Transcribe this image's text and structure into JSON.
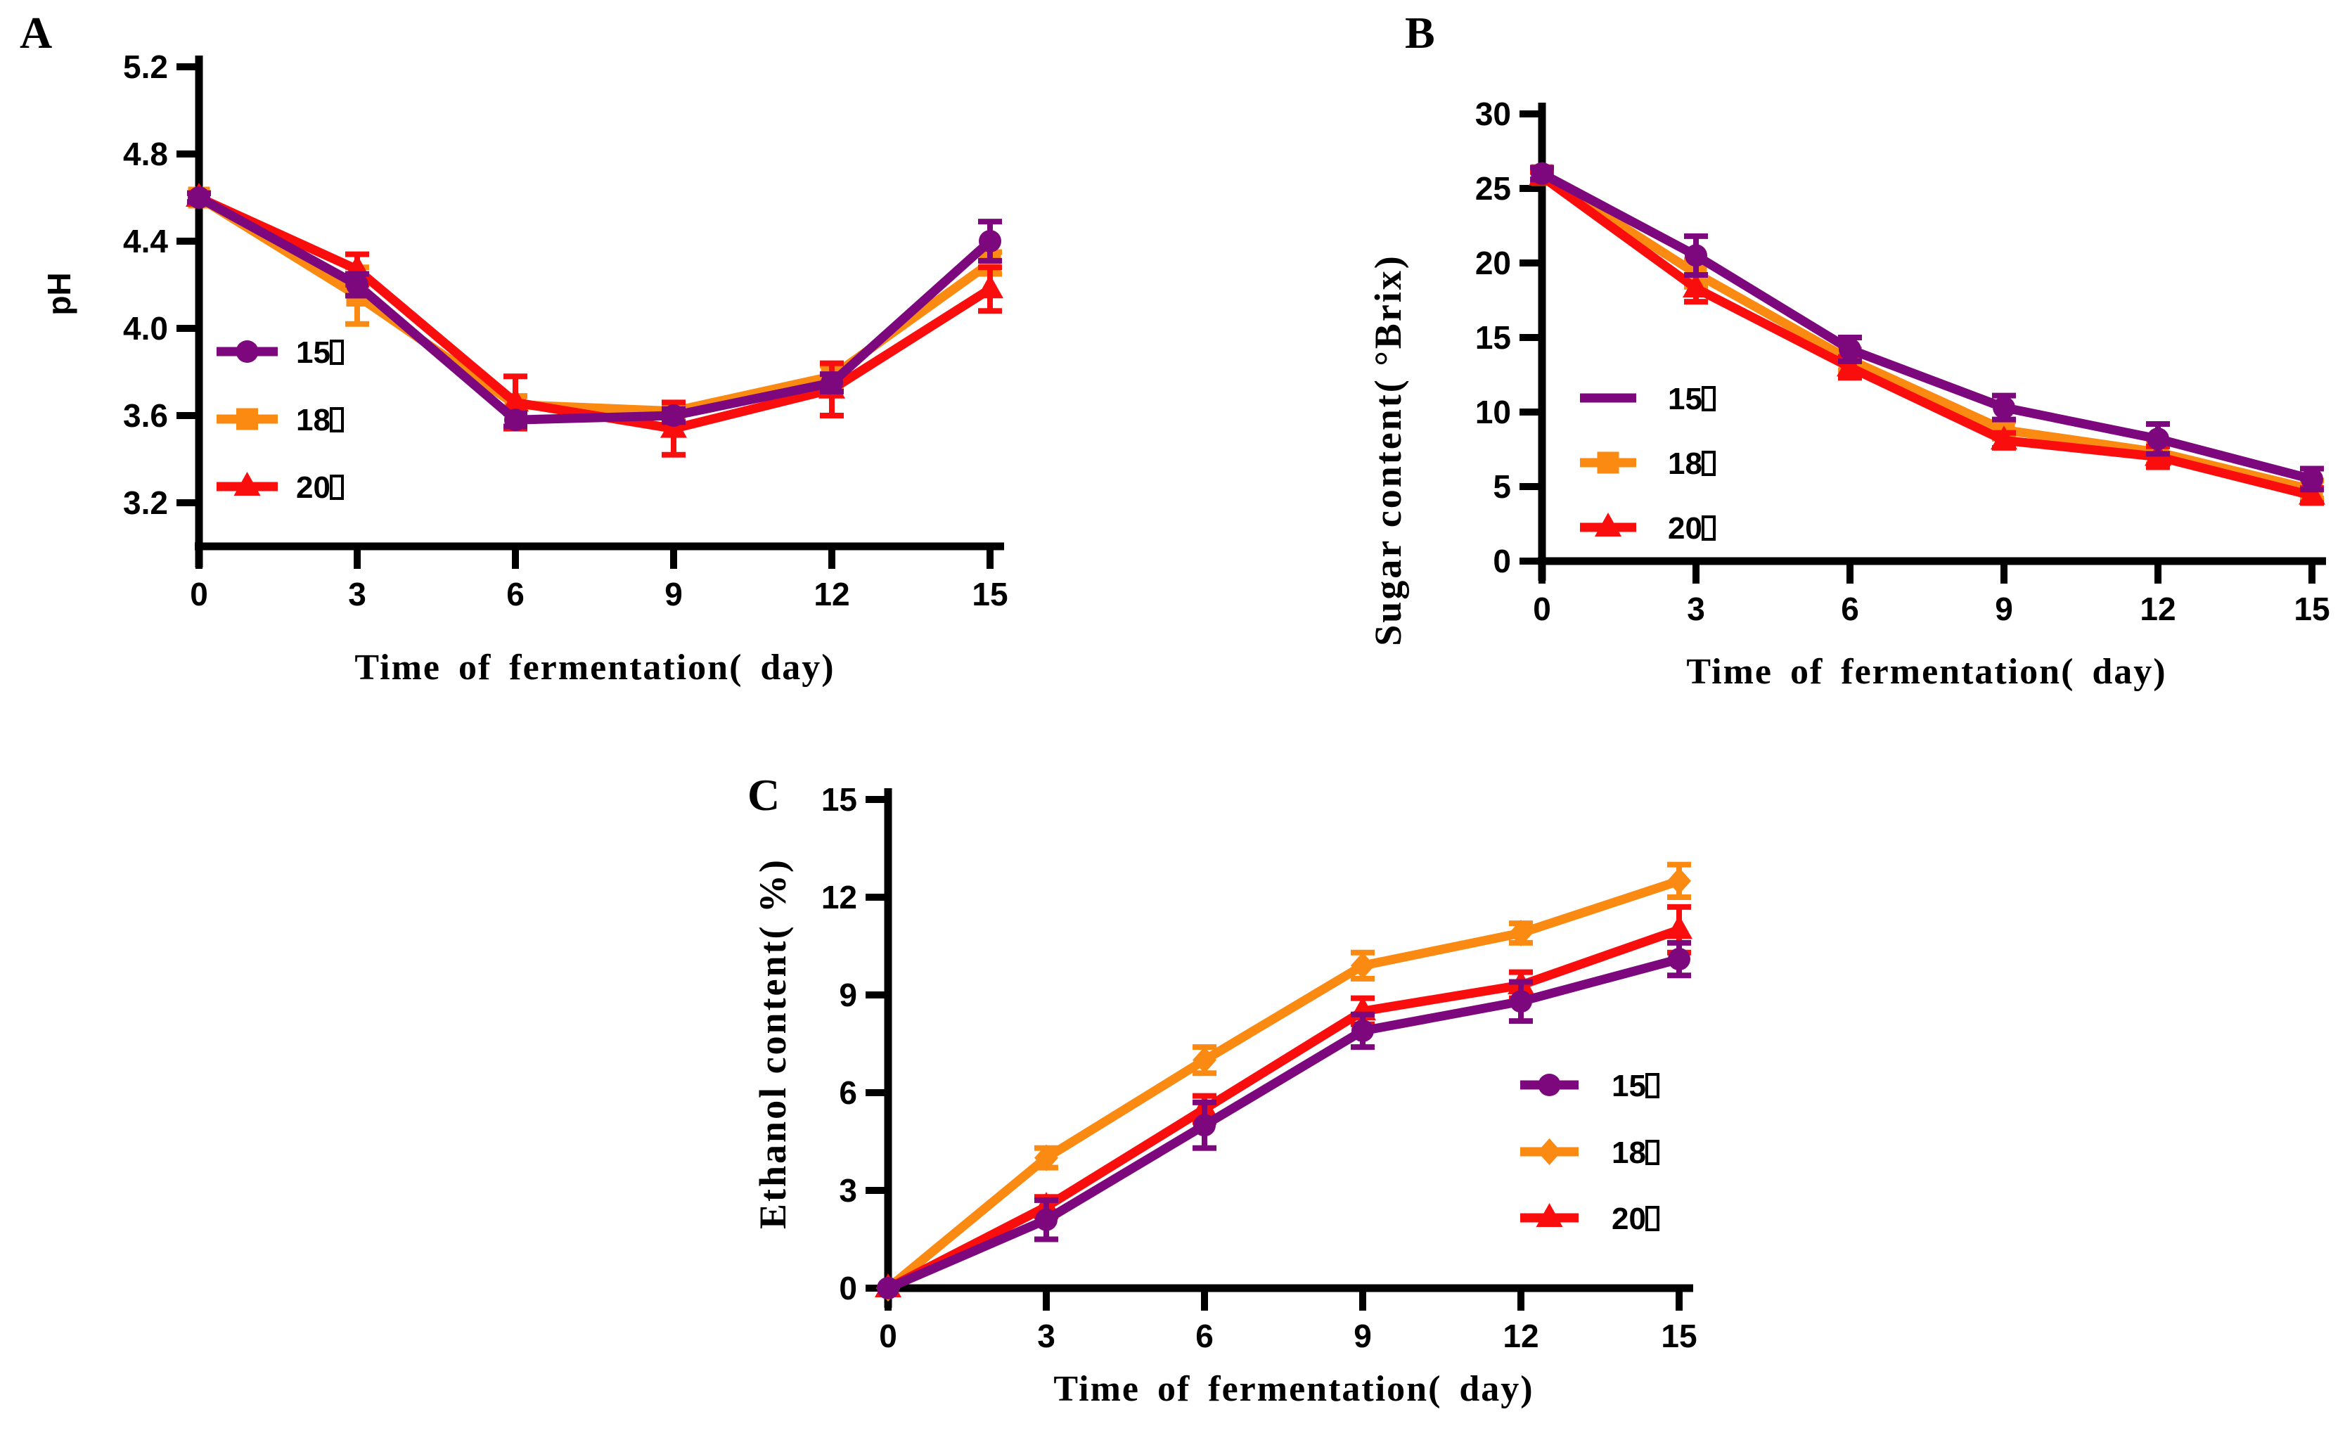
{
  "figure": {
    "background": "#FFFFFF",
    "axis_color": "#000000",
    "legend_unit_glyph": "□",
    "panel_letters": [
      "A",
      "B",
      "C"
    ]
  },
  "colors": {
    "series_15": "#7D087D",
    "series_18": "#FB8A12",
    "series_20": "#F90D0D"
  },
  "chart_data": [
    {
      "type": "line",
      "panel_label": "A",
      "title": "",
      "xlabel": "Time of fermentation( day)",
      "ylabel": "pH",
      "x": [
        0,
        3,
        6,
        9,
        12,
        15
      ],
      "x_tick_labels": [
        "0",
        "3",
        "6",
        "9",
        "12",
        "15"
      ],
      "y_tick_values": [
        3.2,
        3.6,
        4.0,
        4.4,
        4.8,
        5.2
      ],
      "y_tick_labels": [
        "3.2",
        "3.6",
        "4.0",
        "4.4",
        "4.8",
        "5.2"
      ],
      "xlim": [
        0,
        15
      ],
      "ylim": [
        3.0,
        5.2
      ],
      "grid": false,
      "legend_position": "inside-left",
      "series": [
        {
          "name": "15",
          "unit_glyph": "□",
          "color": "#7D087D",
          "marker": "circle",
          "legend_marker": true,
          "values": [
            4.6,
            4.2,
            3.58,
            3.6,
            3.75,
            4.4
          ],
          "errors": [
            0.02,
            0.05,
            0.03,
            0.03,
            0.04,
            0.09
          ]
        },
        {
          "name": "18",
          "unit_glyph": "□",
          "color": "#FB8A12",
          "marker": "square",
          "legend_marker": true,
          "values": [
            4.6,
            4.15,
            3.65,
            3.62,
            3.78,
            4.3
          ],
          "errors": [
            0.02,
            0.13,
            0.04,
            0.03,
            0.05,
            0.05
          ]
        },
        {
          "name": "20",
          "unit_glyph": "□",
          "color": "#F90D0D",
          "marker": "triangle",
          "legend_marker": true,
          "values": [
            4.6,
            4.27,
            3.66,
            3.54,
            3.72,
            4.18
          ],
          "errors": [
            0.02,
            0.07,
            0.12,
            0.12,
            0.12,
            0.1
          ]
        }
      ]
    },
    {
      "type": "line",
      "panel_label": "B",
      "title": "",
      "xlabel": "Time of fermentation( day)",
      "ylabel": "Sugar content( °Brix)",
      "x": [
        0,
        3,
        6,
        9,
        12,
        15
      ],
      "x_tick_labels": [
        "0",
        "3",
        "6",
        "9",
        "12",
        "15"
      ],
      "y_tick_values": [
        0,
        5,
        10,
        15,
        20,
        25,
        30
      ],
      "y_tick_labels": [
        "0",
        "5",
        "10",
        "15",
        "20",
        "25",
        "30"
      ],
      "xlim": [
        0,
        15
      ],
      "ylim": [
        0,
        30
      ],
      "grid": false,
      "legend_position": "inside-left",
      "series": [
        {
          "name": "15",
          "unit_glyph": "□",
          "color": "#7D087D",
          "marker": "circle",
          "legend_marker": false,
          "values": [
            26.0,
            20.5,
            14.2,
            10.3,
            8.2,
            5.5
          ],
          "errors": [
            0.4,
            1.3,
            0.8,
            0.8,
            1.0,
            0.7
          ]
        },
        {
          "name": "18",
          "unit_glyph": "□",
          "color": "#FB8A12",
          "marker": "square",
          "legend_marker": true,
          "values": [
            25.9,
            19.3,
            13.5,
            8.8,
            7.3,
            4.8
          ],
          "errors": [
            0.3,
            0.9,
            0.7,
            0.6,
            0.8,
            0.6
          ]
        },
        {
          "name": "20",
          "unit_glyph": "□",
          "color": "#F90D0D",
          "marker": "triangle",
          "legend_marker": true,
          "values": [
            25.8,
            18.3,
            13.0,
            8.1,
            7.0,
            4.4
          ],
          "errors": [
            0.3,
            0.9,
            0.7,
            0.5,
            0.7,
            0.5
          ]
        }
      ]
    },
    {
      "type": "line",
      "panel_label": "C",
      "title": "",
      "xlabel": "Time of fermentation( day)",
      "ylabel": "Ethanol content( %)",
      "x": [
        0,
        3,
        6,
        9,
        12,
        15
      ],
      "x_tick_labels": [
        "0",
        "3",
        "6",
        "9",
        "12",
        "15"
      ],
      "y_tick_values": [
        0,
        3,
        6,
        9,
        12,
        15
      ],
      "y_tick_labels": [
        "0",
        "3",
        "6",
        "9",
        "12",
        "15"
      ],
      "xlim": [
        0,
        15
      ],
      "ylim": [
        0,
        15
      ],
      "grid": false,
      "legend_position": "inside-right",
      "series": [
        {
          "name": "15",
          "unit_glyph": "□",
          "color": "#7D087D",
          "marker": "circle",
          "legend_marker": true,
          "values": [
            0,
            2.1,
            5.0,
            7.9,
            8.8,
            10.1
          ],
          "errors": [
            0,
            0.6,
            0.7,
            0.5,
            0.6,
            0.5
          ]
        },
        {
          "name": "18",
          "unit_glyph": "□",
          "color": "#FB8A12",
          "marker": "diamond",
          "legend_marker": true,
          "values": [
            0,
            4.0,
            7.0,
            9.9,
            10.9,
            12.5
          ],
          "errors": [
            0,
            0.3,
            0.4,
            0.4,
            0.3,
            0.5
          ]
        },
        {
          "name": "20",
          "unit_glyph": "□",
          "color": "#F90D0D",
          "marker": "triangle",
          "legend_marker": true,
          "values": [
            0,
            2.5,
            5.5,
            8.5,
            9.3,
            11.0
          ],
          "errors": [
            0,
            0.3,
            0.4,
            0.4,
            0.4,
            0.7
          ]
        }
      ]
    }
  ]
}
